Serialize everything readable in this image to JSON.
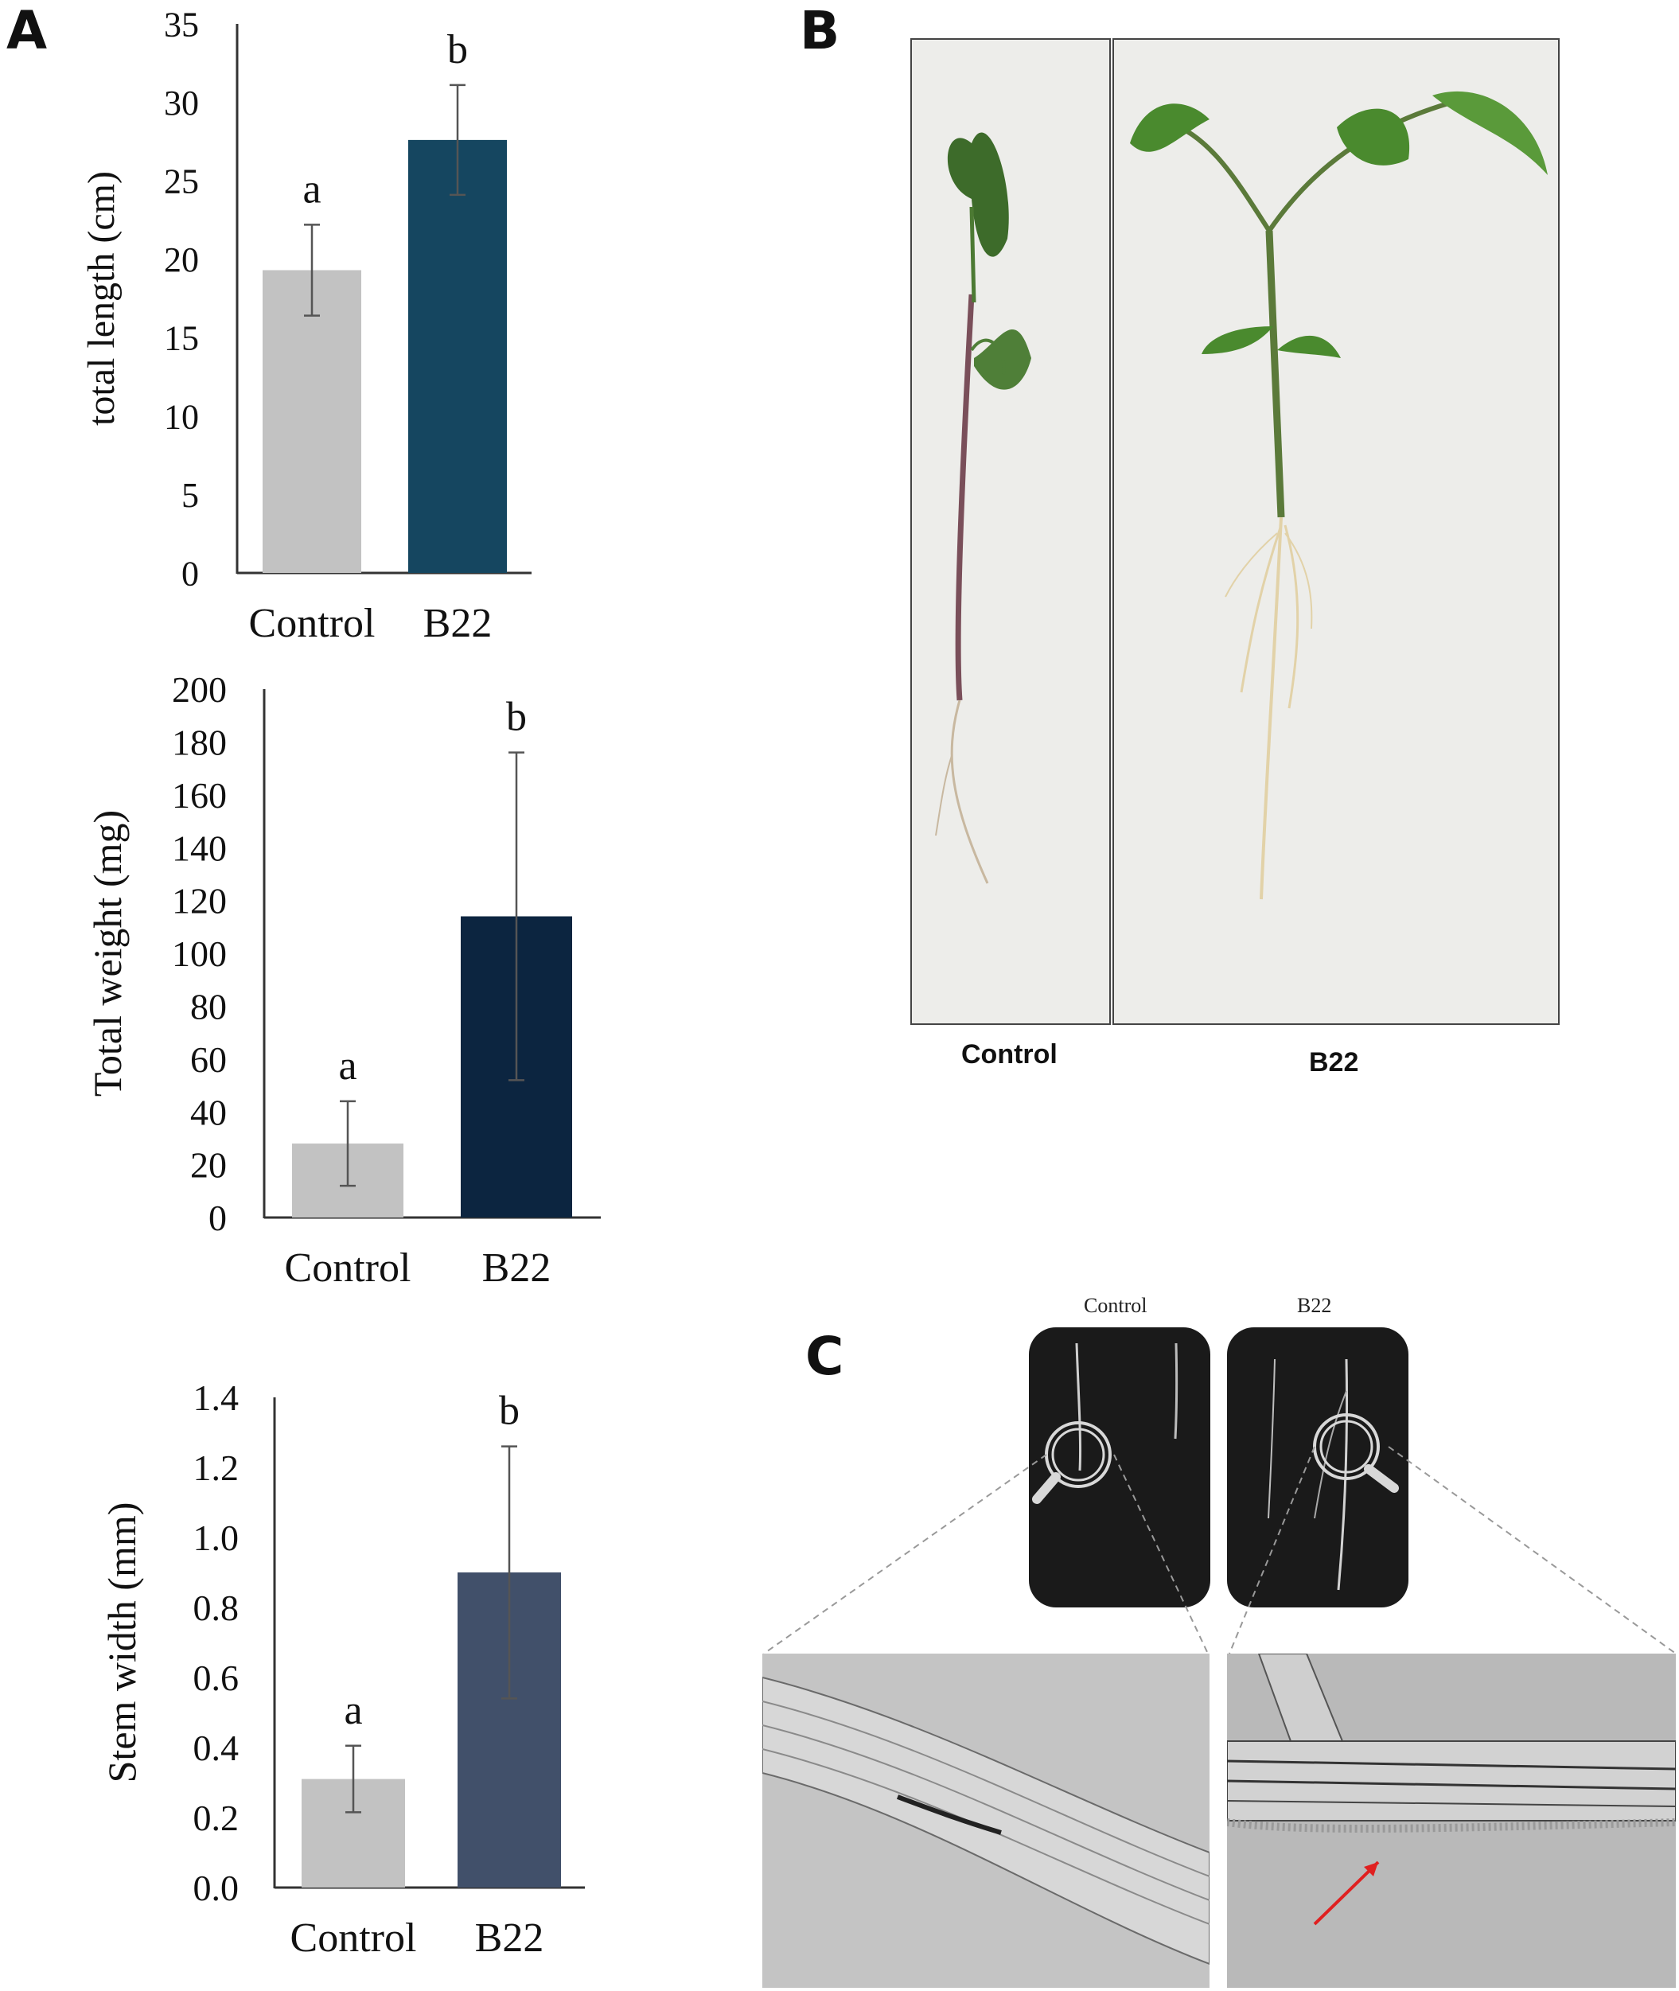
{
  "panels": {
    "a": "A",
    "b": "B",
    "c": "C"
  },
  "chart_data": [
    {
      "type": "bar",
      "categories": [
        "Control",
        "B22"
      ],
      "values": [
        19.3,
        27.6
      ],
      "errors": [
        2.9,
        3.5
      ],
      "sig_letters": [
        "a",
        "b"
      ],
      "colors": [
        "#c2c2c2",
        "#154660"
      ],
      "ylabel": "total length (cm)",
      "ylim": [
        0,
        35
      ],
      "yticks": [
        0,
        5,
        10,
        15,
        20,
        25,
        30,
        35
      ],
      "ytick_labels": [
        "0",
        "5",
        "10",
        "15",
        "20",
        "25",
        "30",
        "35"
      ]
    },
    {
      "type": "bar",
      "categories": [
        "Control",
        "B22"
      ],
      "values": [
        28,
        114
      ],
      "errors": [
        16,
        62
      ],
      "sig_letters": [
        "a",
        "b"
      ],
      "colors": [
        "#c2c2c2",
        "#0c2540"
      ],
      "ylabel": "Total weight  (mg)",
      "ylim": [
        0,
        200
      ],
      "yticks": [
        0,
        20,
        40,
        60,
        80,
        100,
        120,
        140,
        160,
        180,
        200
      ],
      "ytick_labels": [
        "0",
        "20",
        "40",
        "60",
        "80",
        "100",
        "120",
        "140",
        "160",
        "180",
        "200"
      ]
    },
    {
      "type": "bar",
      "categories": [
        "Control",
        "B22"
      ],
      "values": [
        0.31,
        0.9
      ],
      "errors": [
        0.095,
        0.36
      ],
      "sig_letters": [
        "a",
        "b"
      ],
      "colors": [
        "#c2c2c2",
        "#41506a"
      ],
      "ylabel": "Stem width  (mm)",
      "ylim": [
        0,
        1.4
      ],
      "yticks": [
        0,
        0.2,
        0.4,
        0.6,
        0.8,
        1.0,
        1.2,
        1.4
      ],
      "ytick_labels": [
        "0.0",
        "0.2",
        "0.4",
        "0.6",
        "0.8",
        "1.0",
        "1.2",
        "1.4"
      ]
    }
  ],
  "photo_b": {
    "label_control": "Control",
    "label_b22": "B22"
  },
  "panel_c": {
    "label_control": "Control",
    "label_b22": "B22",
    "arrow_color": "#e02020"
  }
}
